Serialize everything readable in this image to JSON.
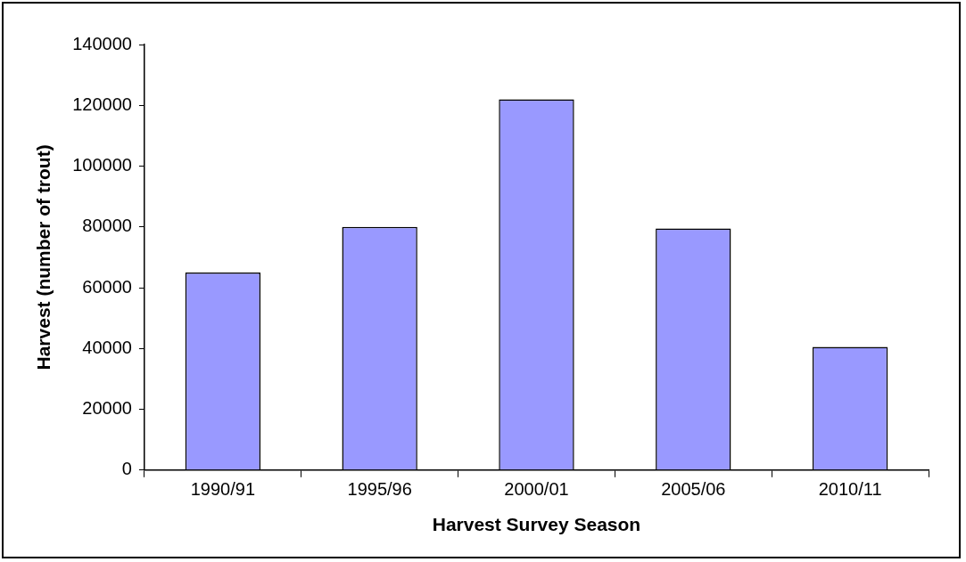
{
  "chart_data": {
    "type": "bar",
    "xlabel": "Harvest Survey Season",
    "ylabel": "Harvest (number of trout)",
    "categories": [
      "1990/91",
      "1995/96",
      "2000/01",
      "2005/06",
      "2010/11"
    ],
    "values": [
      65000,
      80000,
      122000,
      79500,
      40500
    ],
    "color": "#9999ff",
    "ylim": [
      0,
      140000
    ],
    "yticks": [
      0,
      20000,
      40000,
      60000,
      80000,
      100000,
      120000,
      140000
    ],
    "grid": false,
    "legend": false
  }
}
